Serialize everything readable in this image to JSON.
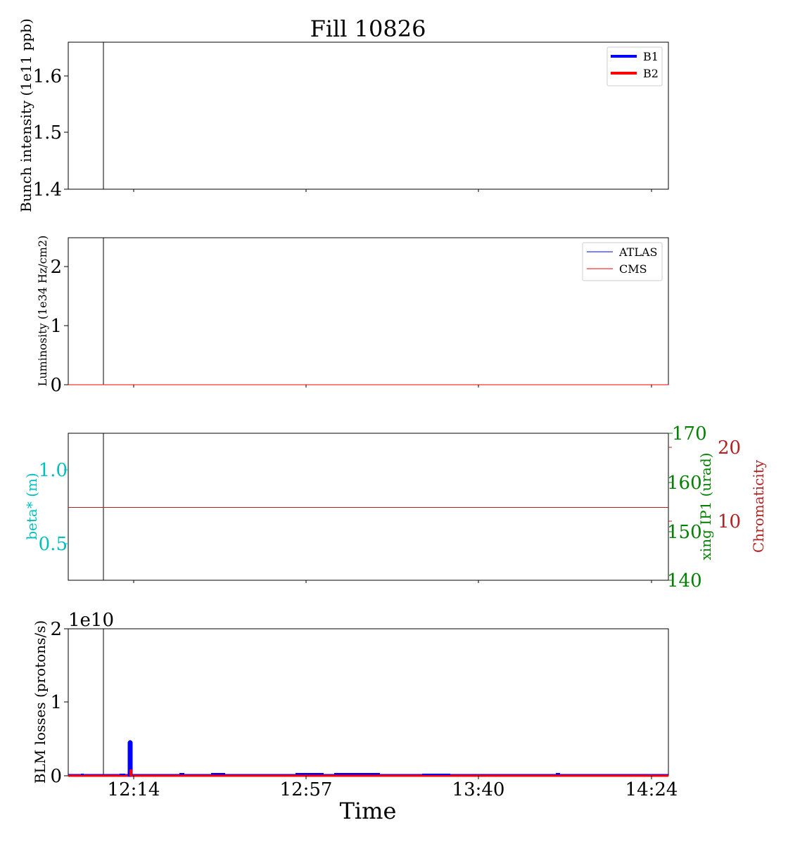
{
  "title": "Fill 10826",
  "xlabel": "Time",
  "x_ticks": [
    "12:14",
    "12:57",
    "13:40",
    "14:24"
  ],
  "colors": {
    "b1": "#0000ff",
    "b2": "#ff0000",
    "beta": "#00bfbf",
    "xing": "#008000",
    "chroma": "#b22222",
    "axis": "#000000"
  },
  "chart_data": [
    {
      "type": "line",
      "ylabel": "Bunch intensity (1e11 ppb)",
      "ylim": [
        1.4,
        1.66
      ],
      "y_ticks": [
        "1.4",
        "1.5",
        "1.6"
      ],
      "legend": {
        "placement": "upper right",
        "entries": [
          "B1",
          "B2"
        ]
      },
      "series": []
    },
    {
      "type": "line",
      "ylabel": "Luminosity (1e34 Hz/cm2)",
      "ylim": [
        0,
        2.5
      ],
      "y_ticks": [
        "0",
        "1",
        "2"
      ],
      "legend": {
        "placement": "upper right",
        "entries": [
          "ATLAS",
          "CMS"
        ]
      },
      "series": [
        {
          "name": "ATLAS",
          "x": [
            "12:00",
            "14:30"
          ],
          "values": [
            0,
            0
          ]
        },
        {
          "name": "CMS",
          "x": [
            "12:00",
            "14:30"
          ],
          "values": [
            0,
            0
          ]
        }
      ]
    },
    {
      "type": "line",
      "ylabel": "beta* (m)",
      "ylim": [
        0.25,
        1.25
      ],
      "y_ticks": [
        "0.5",
        "1.0"
      ],
      "right_axes": [
        {
          "ylabel": "xing IP1 (urad)",
          "ylim": [
            140,
            170
          ],
          "y_ticks": [
            "140",
            "150",
            "160",
            "170"
          ]
        },
        {
          "ylabel": "Chromaticity",
          "ylim": [
            2,
            22
          ],
          "y_ticks": [
            "10",
            "20"
          ]
        }
      ],
      "series": [
        {
          "axis": "Chromaticity",
          "x": [
            "12:00",
            "14:30"
          ],
          "values": [
            11.9,
            11.9
          ]
        }
      ]
    },
    {
      "type": "line",
      "ylabel": "BLM losses (protons/s)",
      "ylim": [
        0,
        2
      ],
      "y_ticks": [
        "0",
        "1",
        "2"
      ],
      "offset_label": "1e10",
      "series": [
        {
          "name": "B1",
          "spike_x": "12:14",
          "spike_value": 0.47,
          "baseline": 0.01
        },
        {
          "name": "B2",
          "spike_x": "12:14",
          "spike_value": 0.07,
          "baseline": 0.005
        }
      ]
    }
  ]
}
